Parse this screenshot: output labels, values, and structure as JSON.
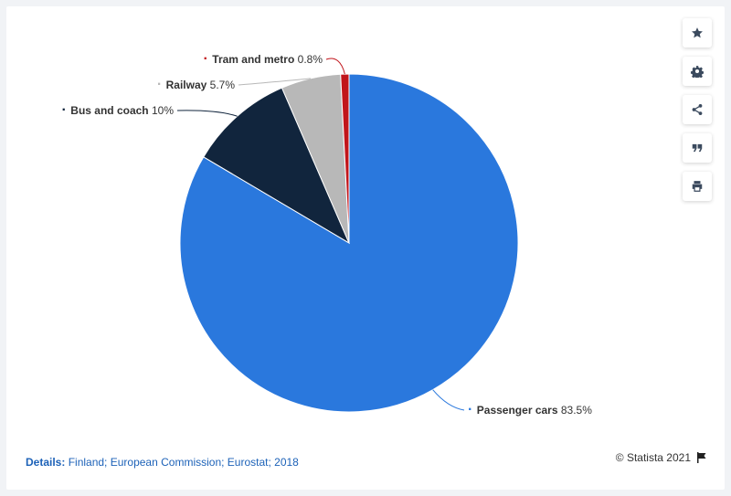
{
  "chart_data": {
    "type": "pie",
    "slices": [
      {
        "name": "Passenger cars",
        "value": 83.5,
        "value_label": "83.5%",
        "color": "#2a78dd"
      },
      {
        "name": "Bus and coach",
        "value": 10,
        "value_label": "10%",
        "color": "#11253d"
      },
      {
        "name": "Railway",
        "value": 5.7,
        "value_label": "5.7%",
        "color": "#b8b8b8"
      },
      {
        "name": "Tram and metro",
        "value": 0.8,
        "value_label": "0.8%",
        "color": "#c1151b"
      }
    ]
  },
  "footer": {
    "details_label": "Details:",
    "details_text": "Finland; European Commission; Eurostat; 2018",
    "credit": "© Statista 2021"
  },
  "toolbar": {
    "icons": [
      "star-icon",
      "gear-icon",
      "share-icon",
      "quote-icon",
      "print-icon"
    ]
  }
}
